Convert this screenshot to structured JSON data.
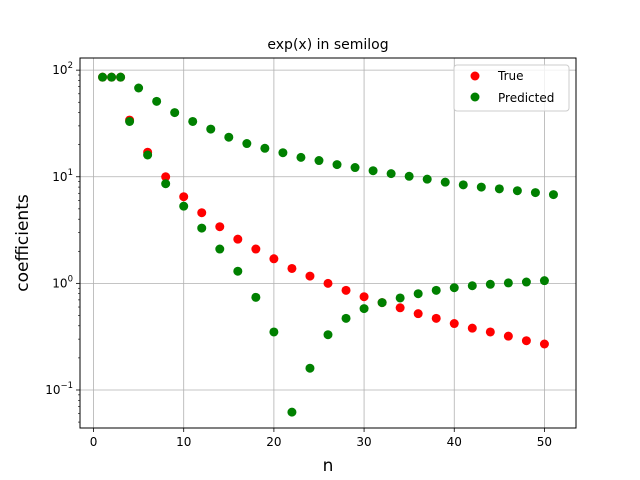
{
  "chart_data": {
    "type": "scatter",
    "title": "exp(x) in semilog",
    "xlabel": "n",
    "ylabel": "coefficients",
    "xlim": [
      -1.5,
      53.5
    ],
    "ylim": [
      0.044,
      130
    ],
    "yscale": "log",
    "grid": true,
    "legend_position": "top-right",
    "x_ticks": [
      0,
      10,
      20,
      30,
      40,
      50
    ],
    "x_tick_labels": [
      "0",
      "10",
      "20",
      "30",
      "40",
      "50"
    ],
    "y_ticks": [
      0.1,
      1,
      10,
      100
    ],
    "y_tick_labels": [
      {
        "base": "10",
        "exp": "−1"
      },
      {
        "base": "10",
        "exp": "0"
      },
      {
        "base": "10",
        "exp": "1"
      },
      {
        "base": "10",
        "exp": "2"
      }
    ],
    "series": [
      {
        "name": "True",
        "color": "#ff0000",
        "x": [
          1,
          2,
          3,
          4,
          6,
          8,
          10,
          12,
          14,
          16,
          18,
          20,
          22,
          24,
          26,
          28,
          30,
          32,
          34,
          36,
          38,
          40,
          42,
          44,
          46,
          48,
          50
        ],
        "y": [
          86,
          86,
          86,
          34,
          17,
          10,
          6.5,
          4.6,
          3.4,
          2.6,
          2.1,
          1.7,
          1.38,
          1.17,
          1.0,
          0.86,
          0.75,
          0.66,
          0.59,
          0.52,
          0.47,
          0.42,
          0.38,
          0.35,
          0.32,
          0.29,
          0.27
        ]
      },
      {
        "name": "Predicted",
        "color": "#008000",
        "x": [
          1,
          2,
          3,
          4,
          5,
          6,
          7,
          8,
          9,
          10,
          11,
          12,
          13,
          14,
          15,
          16,
          17,
          18,
          19,
          20,
          21,
          22,
          23,
          24,
          25,
          26,
          27,
          28,
          29,
          30,
          31,
          32,
          33,
          34,
          35,
          36,
          37,
          38,
          39,
          40,
          41,
          42,
          43,
          44,
          45,
          46,
          47,
          48,
          49,
          50,
          51
        ],
        "y": [
          86,
          86,
          86,
          33,
          68,
          16,
          51,
          8.6,
          40,
          5.3,
          33,
          3.3,
          28,
          2.1,
          23.5,
          1.3,
          20.5,
          0.74,
          18.5,
          0.35,
          16.8,
          0.062,
          15.2,
          0.16,
          14.2,
          0.33,
          13.0,
          0.47,
          12.2,
          0.58,
          11.4,
          0.66,
          10.7,
          0.73,
          10.1,
          0.8,
          9.5,
          0.86,
          8.9,
          0.91,
          8.4,
          0.95,
          8.0,
          0.98,
          7.7,
          1.01,
          7.4,
          1.03,
          7.1,
          1.06,
          6.8
        ]
      }
    ]
  }
}
